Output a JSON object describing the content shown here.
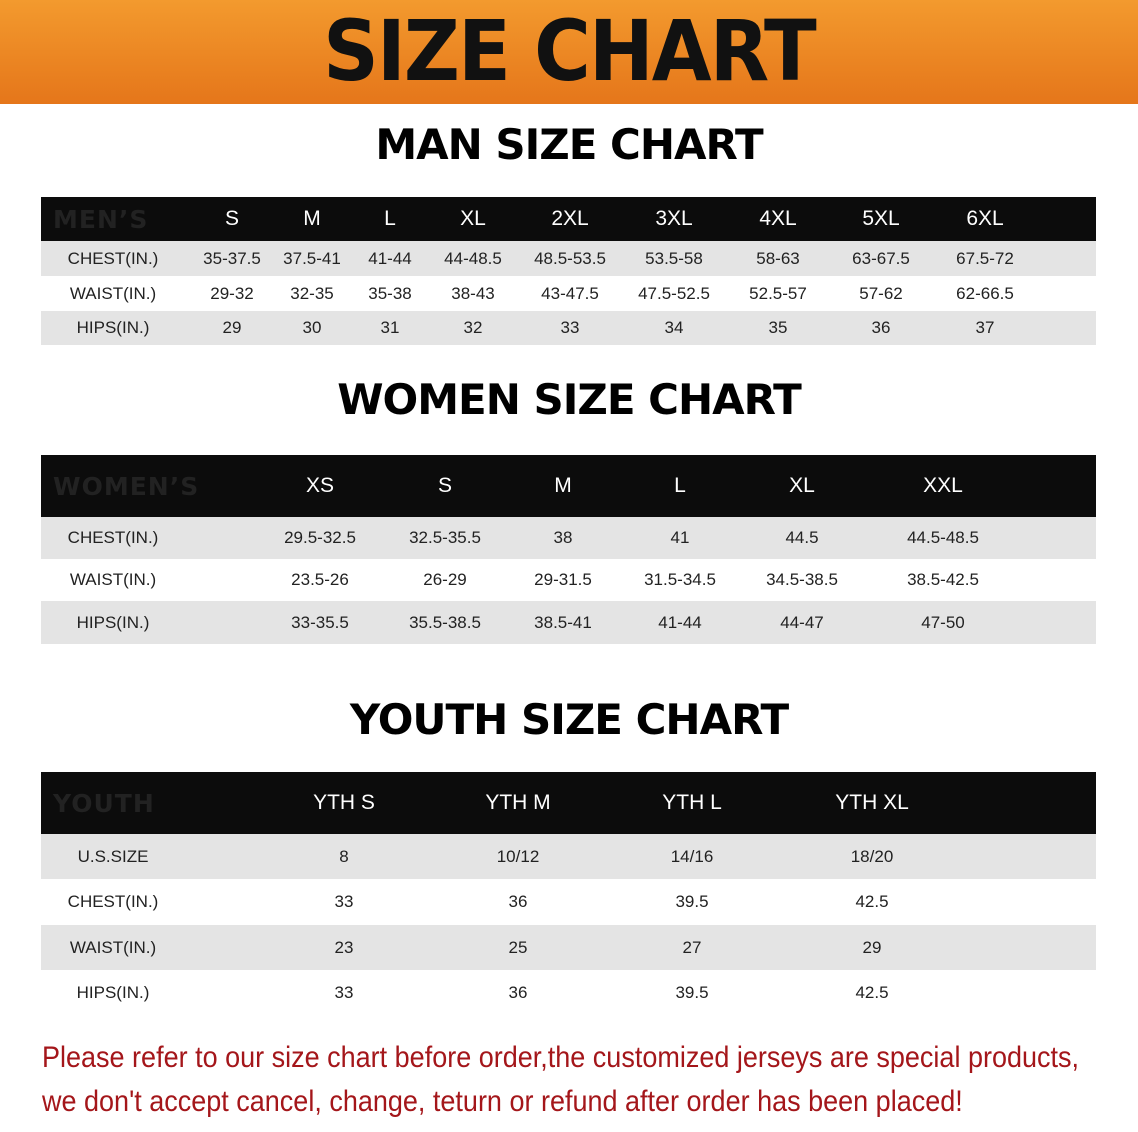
{
  "banner_title": "SIZE CHART",
  "colors": {
    "banner": "#ee8622",
    "header_row": "#0c0c0c",
    "stripe": "#e4e4e4",
    "note": "#a4161a"
  },
  "men": {
    "title": "MAN SIZE CHART",
    "header_label": "MEN’S",
    "sizes": [
      "S",
      "M",
      "L",
      "XL",
      "2XL",
      "3XL",
      "4XL",
      "5XL",
      "6XL"
    ],
    "rows": [
      {
        "label": "CHEST(IN.)",
        "values": [
          "35-37.5",
          "37.5-41",
          "41-44",
          "44-48.5",
          "48.5-53.5",
          "53.5-58",
          "58-63",
          "63-67.5",
          "67.5-72"
        ]
      },
      {
        "label": "WAIST(IN.)",
        "values": [
          "29-32",
          "32-35",
          "35-38",
          "38-43",
          "43-47.5",
          "47.5-52.5",
          "52.5-57",
          "57-62",
          "62-66.5"
        ]
      },
      {
        "label": "HIPS(IN.)",
        "values": [
          "29",
          "30",
          "31",
          "32",
          "33",
          "34",
          "35",
          "36",
          "37"
        ]
      }
    ]
  },
  "women": {
    "title": "WOMEN SIZE CHART",
    "header_label": "WOMEN’S",
    "sizes": [
      "XS",
      "S",
      "M",
      "L",
      "XL",
      "XXL"
    ],
    "rows": [
      {
        "label": "CHEST(IN.)",
        "values": [
          "29.5-32.5",
          "32.5-35.5",
          "38",
          "41",
          "44.5",
          "44.5-48.5"
        ]
      },
      {
        "label": "WAIST(IN.)",
        "values": [
          "23.5-26",
          "26-29",
          "29-31.5",
          "31.5-34.5",
          "34.5-38.5",
          "38.5-42.5"
        ]
      },
      {
        "label": "HIPS(IN.)",
        "values": [
          "33-35.5",
          "35.5-38.5",
          "38.5-41",
          "41-44",
          "44-47",
          "47-50"
        ]
      }
    ]
  },
  "youth": {
    "title": "YOUTH SIZE CHART",
    "header_label": "YOUTH",
    "sizes": [
      "YTH S",
      "YTH M",
      "YTH L",
      "YTH XL"
    ],
    "rows": [
      {
        "label": "U.S.SIZE",
        "values": [
          "8",
          "10/12",
          "14/16",
          "18/20"
        ]
      },
      {
        "label": "CHEST(IN.)",
        "values": [
          "33",
          "36",
          "39.5",
          "42.5"
        ]
      },
      {
        "label": "WAIST(IN.)",
        "values": [
          "23",
          "25",
          "27",
          "29"
        ]
      },
      {
        "label": "HIPS(IN.)",
        "values": [
          "33",
          "36",
          "39.5",
          "42.5"
        ]
      }
    ]
  },
  "note": {
    "line1": "Please refer to our size chart before order,the customized jerseys are special products,",
    "line2": "we don't accept cancel, change, teturn or refund after order has been placed!"
  }
}
